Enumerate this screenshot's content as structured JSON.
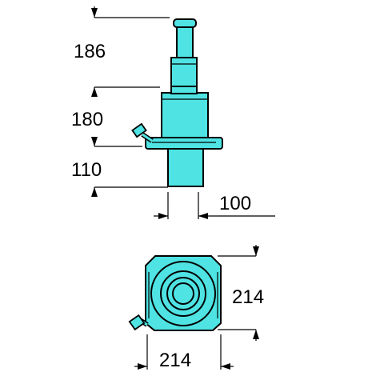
{
  "colors": {
    "body": "#4fe3e3",
    "outline": "#000000",
    "background": "#ffffff"
  },
  "side_view": {
    "dimensions": {
      "top_section": "186",
      "middle_section": "180",
      "bottom_section": "110",
      "shaft_offset": "100"
    }
  },
  "top_view": {
    "dimensions": {
      "depth": "214",
      "width": "214"
    }
  }
}
